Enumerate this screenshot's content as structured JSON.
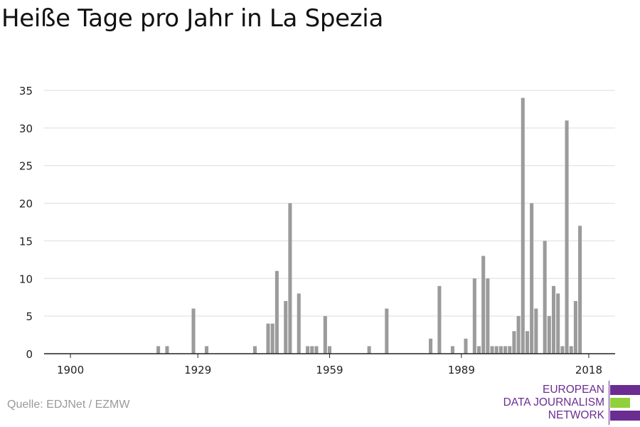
{
  "title": "Heiße Tage pro Jahr in La Spezia",
  "source": "Quelle: EDJNet / EZMW",
  "logo": {
    "line1": "EUROPEAN",
    "line2": "DATA JOURNALISM",
    "line3": "NETWORK"
  },
  "colors": {
    "bar": "#9b9b9b",
    "grid": "#dddddd",
    "axis": "#222222",
    "logo_purple": "#6b2d91",
    "logo_green": "#8fd13a"
  },
  "chart_data": {
    "type": "bar",
    "title": "Heiße Tage pro Jahr in La Spezia",
    "xlabel": "",
    "ylabel": "",
    "xlim": [
      1894,
      2024
    ],
    "ylim": [
      0,
      35
    ],
    "x_ticks": [
      1900,
      1929,
      1959,
      1989,
      2018
    ],
    "y_ticks": [
      0,
      5,
      10,
      15,
      20,
      25,
      30,
      35
    ],
    "grid": true,
    "years": [
      1920,
      1922,
      1928,
      1931,
      1942,
      1945,
      1946,
      1947,
      1949,
      1950,
      1952,
      1954,
      1955,
      1956,
      1958,
      1959,
      1968,
      1972,
      1982,
      1984,
      1987,
      1990,
      1992,
      1993,
      1994,
      1995,
      1996,
      1997,
      1998,
      1999,
      2000,
      2001,
      2002,
      2003,
      2004,
      2005,
      2006,
      2008,
      2009,
      2010,
      2011,
      2012,
      2013,
      2014,
      2015,
      2016,
      2017
    ],
    "values": [
      1,
      1,
      6,
      1,
      1,
      4,
      4,
      11,
      7,
      20,
      8,
      1,
      1,
      1,
      5,
      1,
      1,
      6,
      2,
      9,
      1,
      2,
      10,
      1,
      13,
      10,
      1,
      1,
      1,
      1,
      1,
      3,
      5,
      34,
      3,
      20,
      6,
      15,
      5,
      9,
      8,
      1,
      31,
      1,
      7,
      17,
      0
    ]
  }
}
